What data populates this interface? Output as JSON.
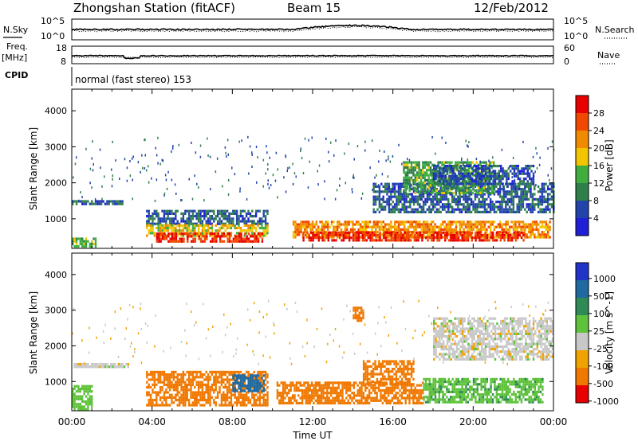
{
  "header": {
    "station": "Zhongshan Station (fitACF)",
    "beam": "Beam 15",
    "date": "12/Feb/2012"
  },
  "strip_panels": {
    "nsky_label": "N.Sky",
    "nsearch_label": "N.Search",
    "noise_ticks": [
      "10^5",
      "10^0"
    ],
    "freq_label": "Freq.",
    "freq_unit": "[MHz]",
    "freq_ticks": [
      "18",
      "8"
    ],
    "nave_label": "Nave",
    "nave_ticks": [
      "60",
      "0"
    ],
    "cpid_label": "CPID",
    "cpid_text": "normal (fast stereo) 153"
  },
  "colors": {
    "power_scale": [
      "#1f1fd6",
      "#2244aa",
      "#2f7f4a",
      "#3fae3f",
      "#f2c500",
      "#f08a00",
      "#f04800",
      "#e80000"
    ],
    "velocity_scale": [
      "#2035c8",
      "#1f6aa0",
      "#2f8a55",
      "#5ec23a",
      "#c8c8c8",
      "#f0a200",
      "#f07800",
      "#e80000"
    ]
  },
  "chart_data": [
    {
      "type": "heatmap",
      "name": "power",
      "ylabel": "Slant Range [km]",
      "yticks": [
        1000,
        2000,
        3000,
        4000
      ],
      "ylim": [
        180,
        4600
      ],
      "colorbar_label": "Power [dB]",
      "colorbar_ticks": [
        "4",
        "8",
        "12",
        "16",
        "20",
        "24",
        "28"
      ],
      "clim": [
        0,
        32
      ],
      "regions": [
        {
          "t0": 0.0,
          "t1": 2.5,
          "r0": 1380,
          "r1": 1520,
          "v": 7
        },
        {
          "t0": 0.0,
          "t1": 1.2,
          "r0": 240,
          "r1": 480,
          "v": 14
        },
        {
          "t0": 3.7,
          "t1": 9.8,
          "r0": 850,
          "r1": 1250,
          "v": 7
        },
        {
          "t0": 3.7,
          "t1": 9.8,
          "r0": 500,
          "r1": 850,
          "v": 18
        },
        {
          "t0": 4.2,
          "t1": 9.5,
          "r0": 380,
          "r1": 620,
          "v": 28
        },
        {
          "t0": 11.0,
          "t1": 23.8,
          "r0": 480,
          "r1": 950,
          "v": 22
        },
        {
          "t0": 11.5,
          "t1": 22.5,
          "r0": 400,
          "r1": 650,
          "v": 28
        },
        {
          "t0": 15.0,
          "t1": 24.0,
          "r0": 1200,
          "r1": 2000,
          "v": 7
        },
        {
          "t0": 16.5,
          "t1": 21.0,
          "r0": 1700,
          "r1": 2600,
          "v": 13
        },
        {
          "t0": 18.0,
          "t1": 23.0,
          "r0": 2000,
          "r1": 2500,
          "v": 6
        }
      ]
    },
    {
      "type": "heatmap",
      "name": "velocity",
      "xlabel": "Time UT",
      "xticks": [
        "00:00",
        "04:00",
        "08:00",
        "12:00",
        "16:00",
        "20:00",
        "00:00"
      ],
      "xlim": [
        0,
        24
      ],
      "ylabel": "Slant Range [km]",
      "yticks": [
        1000,
        2000,
        3000,
        4000
      ],
      "ylim": [
        180,
        4600
      ],
      "colorbar_label": "Velocity [m s^-1]",
      "colorbar_ticks": [
        "1000",
        "500",
        "100",
        "25",
        "-25",
        "-100",
        "-500",
        "-1000"
      ],
      "regions": [
        {
          "t0": 0.0,
          "t1": 2.8,
          "r0": 1380,
          "r1": 1520,
          "v": 0
        },
        {
          "t0": 0.0,
          "t1": 1.0,
          "r0": 250,
          "r1": 900,
          "v": 60
        },
        {
          "t0": 3.7,
          "t1": 9.8,
          "r0": 300,
          "r1": 1300,
          "v": -300
        },
        {
          "t0": 8.0,
          "t1": 9.6,
          "r0": 700,
          "r1": 1200,
          "v": 800
        },
        {
          "t0": 10.2,
          "t1": 17.5,
          "r0": 380,
          "r1": 1000,
          "v": -300
        },
        {
          "t0": 14.5,
          "t1": 17.0,
          "r0": 900,
          "r1": 1600,
          "v": -250
        },
        {
          "t0": 17.5,
          "t1": 23.5,
          "r0": 400,
          "r1": 1100,
          "v": 80
        },
        {
          "t0": 18.0,
          "t1": 24.0,
          "r0": 1600,
          "r1": 2800,
          "v": 0
        },
        {
          "t0": 14.0,
          "t1": 14.5,
          "r0": 2700,
          "r1": 3100,
          "v": -300
        }
      ]
    }
  ]
}
